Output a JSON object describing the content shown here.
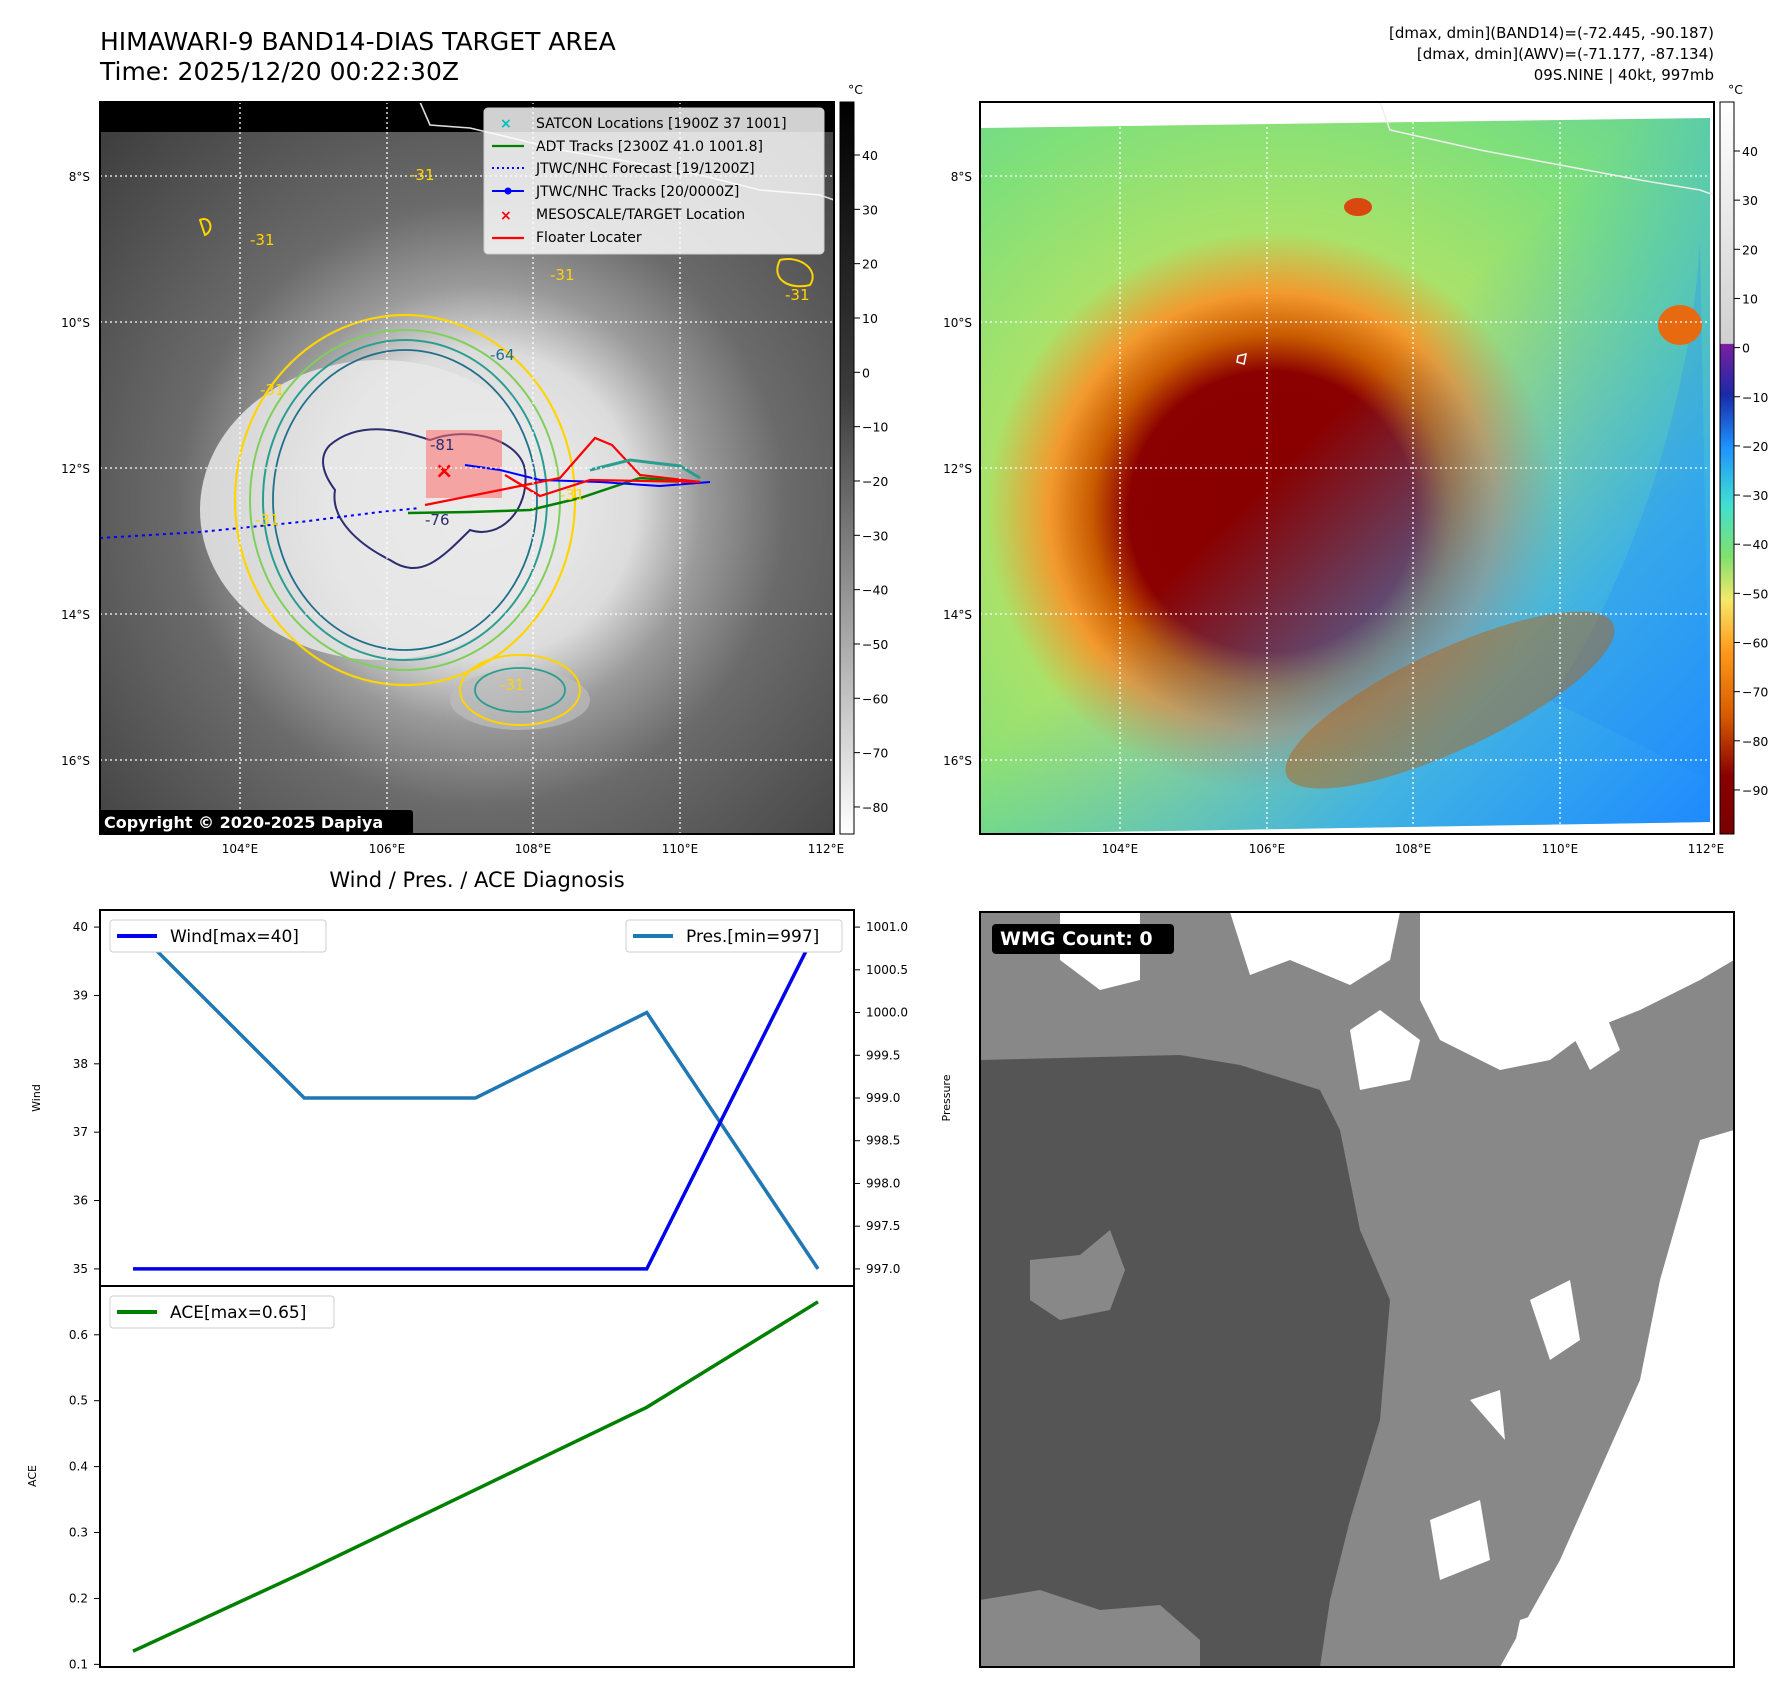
{
  "panel_ir": {
    "title_line1": "HIMAWARI-9 BAND14-DIAS TARGET AREA",
    "title_line2": "Time: 2025/12/20 00:22:30Z",
    "copyright": "Copyright © 2020-2025 Dapiya",
    "colorbar_unit": "°C",
    "colorbar_ticks": [
      "40",
      "30",
      "20",
      "10",
      "0",
      "−10",
      "−20",
      "−30",
      "−40",
      "−50",
      "−60",
      "−70",
      "−80"
    ],
    "lat_labels": [
      "8°S",
      "10°S",
      "12°S",
      "14°S",
      "16°S"
    ],
    "lon_labels": [
      "104°E",
      "106°E",
      "108°E",
      "110°E",
      "112°E"
    ],
    "contour_labels": [
      "-31",
      "-31",
      "-31",
      "-31",
      "-31",
      "-64",
      "-81",
      "-76",
      "-31",
      "-31",
      "-31"
    ],
    "legend": [
      {
        "label": "SATCON Locations [1900Z 37 1001]",
        "color": "#00bfbf",
        "marker": "x"
      },
      {
        "label": "ADT Tracks [2300Z 41.0 1001.8]",
        "color": "#008000",
        "marker": "line"
      },
      {
        "label": "JTWC/NHC Forecast [19/1200Z]",
        "color": "#0000ff",
        "marker": "dotted"
      },
      {
        "label": "JTWC/NHC Tracks [20/0000Z]",
        "color": "#0000ff",
        "marker": "line-dot"
      },
      {
        "label": "MESOSCALE/TARGET Location",
        "color": "#ff0000",
        "marker": "x"
      },
      {
        "label": "Floater Locater",
        "color": "#ff0000",
        "marker": "line"
      }
    ]
  },
  "panel_color": {
    "info_line1": "[dmax, dmin](BAND14)=(-72.445, -90.187)",
    "info_line2": "[dmax, dmin](AWV)=(-71.177, -87.134)",
    "info_line3": "09S.NINE | 40kt, 997mb",
    "colorbar_unit": "°C",
    "colorbar_ticks": [
      "40",
      "30",
      "20",
      "10",
      "0",
      "−10",
      "−20",
      "−30",
      "−40",
      "−50",
      "−60",
      "−70",
      "−80",
      "−90"
    ],
    "lat_labels": [
      "8°S",
      "10°S",
      "12°S",
      "14°S",
      "16°S"
    ],
    "lon_labels": [
      "104°E",
      "106°E",
      "108°E",
      "110°E",
      "112°E"
    ]
  },
  "panel_wmg": {
    "label": "WMG Count: 0"
  },
  "chart_data": [
    {
      "type": "line",
      "title": "Wind / Pres. / ACE Diagnosis",
      "x": [
        0,
        1,
        2,
        3,
        4
      ],
      "series": [
        {
          "name": "Wind[max=40]",
          "axis": "left",
          "color": "#0000ee",
          "values": [
            35,
            35,
            35,
            35,
            40
          ]
        },
        {
          "name": "Pres.[min=997]",
          "axis": "right",
          "color": "#1f77b4",
          "values": [
            1001.0,
            999.0,
            999.0,
            1000.0,
            997.0
          ]
        }
      ],
      "ylabel_left": "Wind",
      "ylabel_right": "Pressure",
      "yticks_left": [
        "40",
        "39",
        "38",
        "37",
        "36",
        "35"
      ],
      "yticks_right": [
        "1001.0",
        "1000.5",
        "1000.0",
        "999.5",
        "999.0",
        "998.5",
        "998.0",
        "997.5",
        "997.0"
      ],
      "ylim_left": [
        34.75,
        40.25
      ],
      "ylim_right": [
        996.8,
        1001.2
      ],
      "legend_placement": "top-left / top-right"
    },
    {
      "type": "line",
      "x": [
        0,
        1,
        2,
        3,
        4
      ],
      "series": [
        {
          "name": "ACE[max=0.65]",
          "color": "#008000",
          "values": [
            0.12,
            0.24,
            0.365,
            0.49,
            0.65
          ]
        }
      ],
      "ylabel": "ACE",
      "yticks": [
        "0.6",
        "0.5",
        "0.4",
        "0.3",
        "0.2",
        "0.1"
      ],
      "ylim": [
        0.096,
        0.674
      ],
      "legend_placement": "top-left"
    }
  ]
}
